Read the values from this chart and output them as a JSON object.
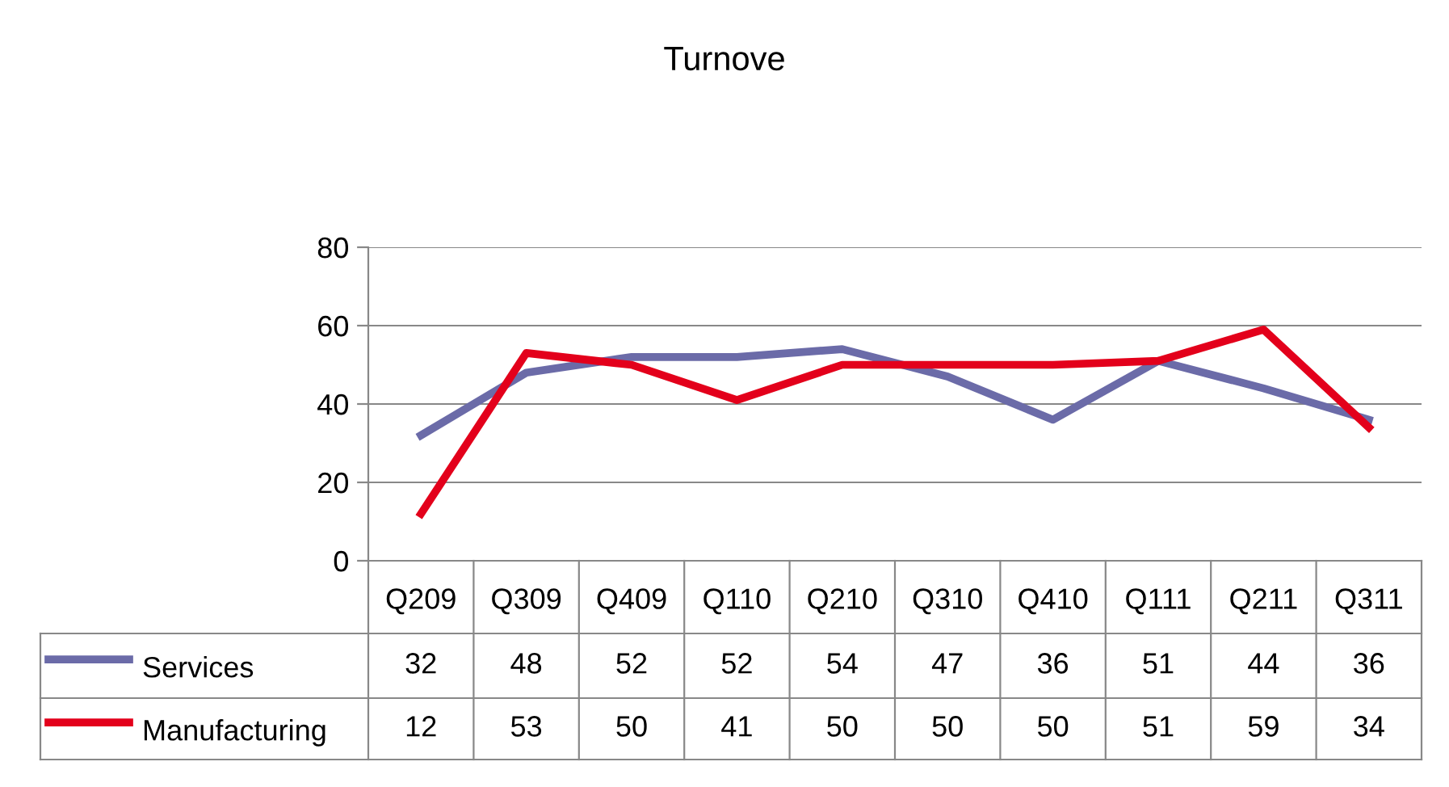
{
  "chart_data": {
    "type": "line",
    "title": "Turnove",
    "categories": [
      "Q209",
      "Q309",
      "Q409",
      "Q110",
      "Q210",
      "Q310",
      "Q410",
      "Q111",
      "Q211",
      "Q311"
    ],
    "series": [
      {
        "name": "Services",
        "color": "#6b6ba8",
        "values": [
          32,
          48,
          52,
          52,
          54,
          47,
          36,
          51,
          44,
          36
        ]
      },
      {
        "name": "Manufacturing",
        "color": "#e3001b",
        "values": [
          12,
          53,
          50,
          41,
          50,
          50,
          50,
          51,
          59,
          34
        ]
      }
    ],
    "ylim": [
      0,
      80
    ],
    "yticks": [
      0,
      20,
      40,
      60,
      80
    ],
    "grid": "y",
    "legend": "bottom",
    "data_labels": true
  }
}
